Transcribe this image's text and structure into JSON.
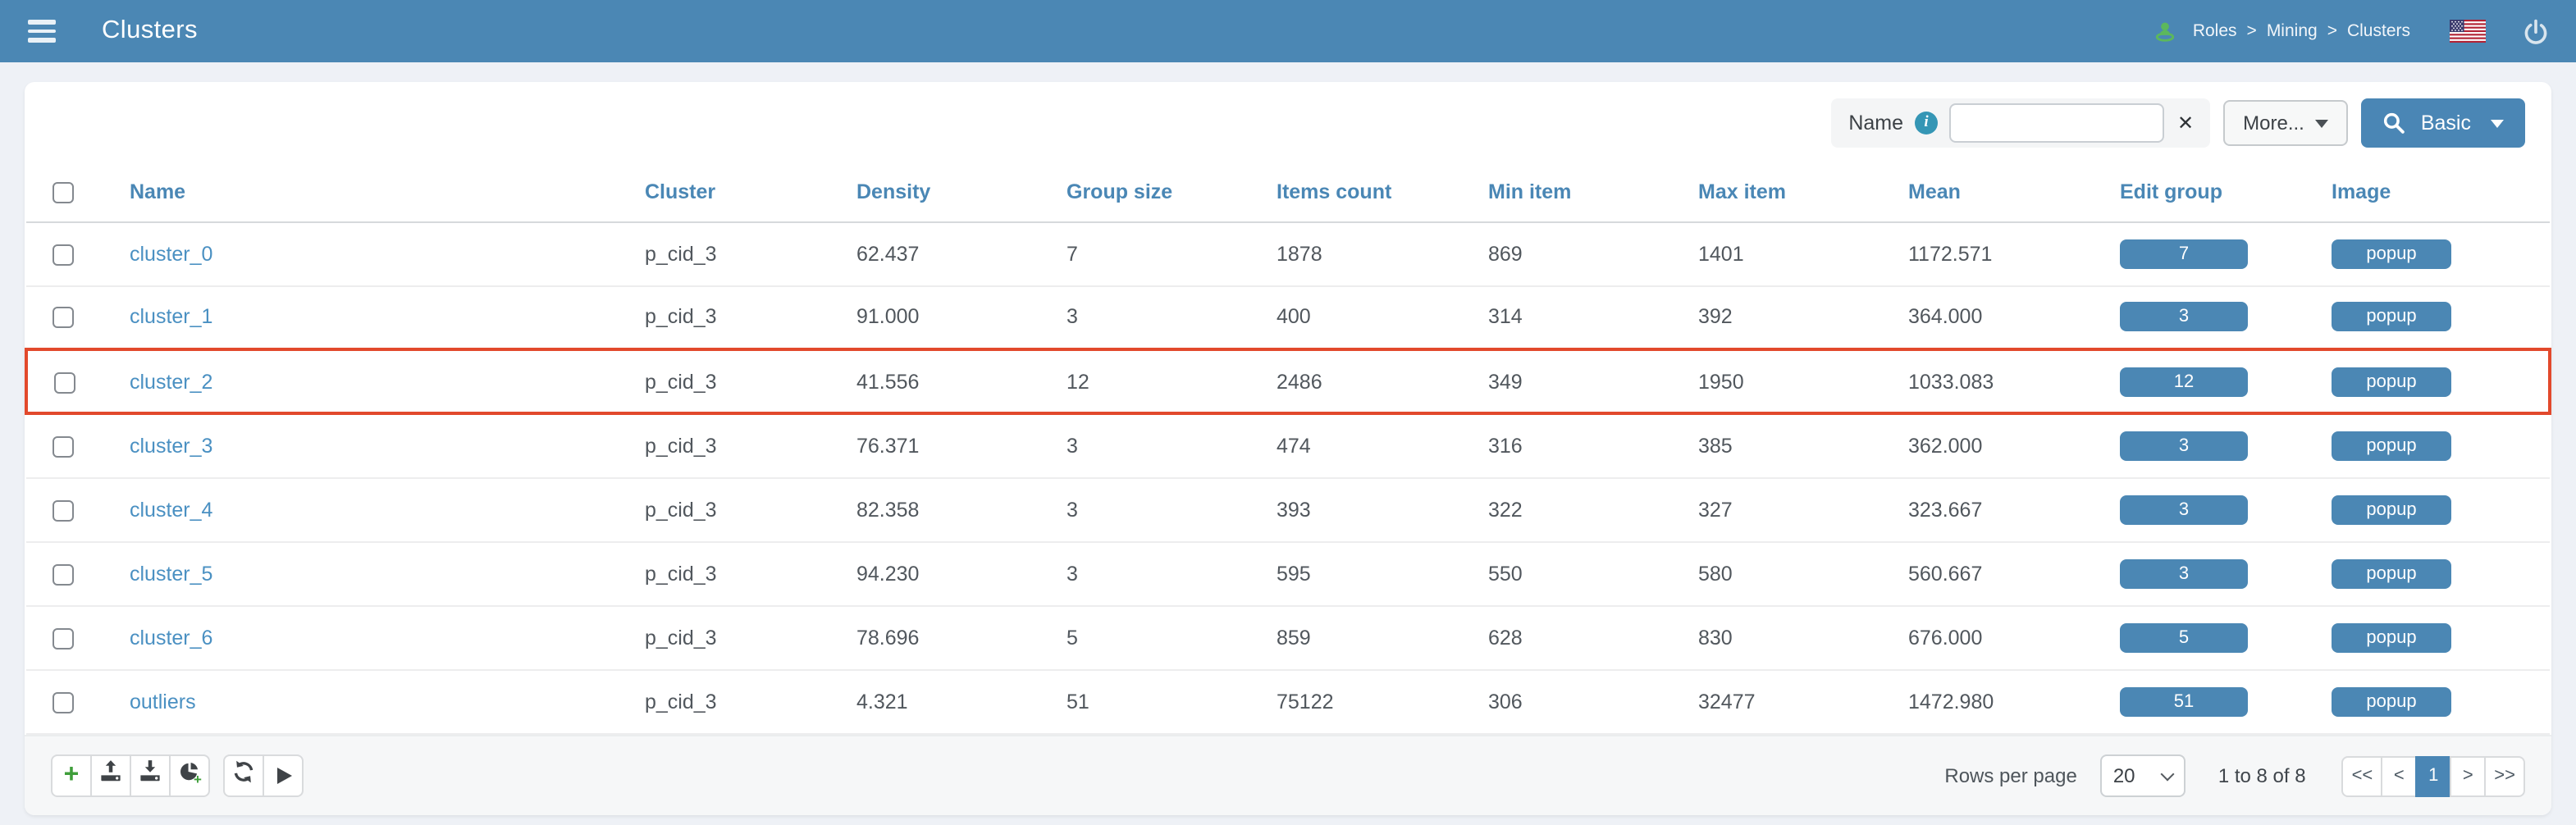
{
  "header": {
    "title": "Clusters",
    "breadcrumb": [
      "Roles",
      "Mining",
      "Clusters"
    ],
    "breadcrumb_separator": ">"
  },
  "search": {
    "field_label": "Name",
    "input_value": "",
    "more_label": "More...",
    "basic_label": "Basic"
  },
  "icons": {
    "info_glyph": "i",
    "clear_glyph": "✕",
    "add_glyph": "+"
  },
  "table": {
    "columns": [
      "Name",
      "Cluster",
      "Density",
      "Group size",
      "Items count",
      "Min item",
      "Max item",
      "Mean",
      "Edit group",
      "Image"
    ],
    "popup_label": "popup",
    "rows": [
      {
        "name": "cluster_0",
        "cluster": "p_cid_3",
        "density": "62.437",
        "group_size": "7",
        "items_count": "1878",
        "min_item": "869",
        "max_item": "1401",
        "mean": "1172.571",
        "edit_group": "7",
        "highlighted": false
      },
      {
        "name": "cluster_1",
        "cluster": "p_cid_3",
        "density": "91.000",
        "group_size": "3",
        "items_count": "400",
        "min_item": "314",
        "max_item": "392",
        "mean": "364.000",
        "edit_group": "3",
        "highlighted": false
      },
      {
        "name": "cluster_2",
        "cluster": "p_cid_3",
        "density": "41.556",
        "group_size": "12",
        "items_count": "2486",
        "min_item": "349",
        "max_item": "1950",
        "mean": "1033.083",
        "edit_group": "12",
        "highlighted": true
      },
      {
        "name": "cluster_3",
        "cluster": "p_cid_3",
        "density": "76.371",
        "group_size": "3",
        "items_count": "474",
        "min_item": "316",
        "max_item": "385",
        "mean": "362.000",
        "edit_group": "3",
        "highlighted": false
      },
      {
        "name": "cluster_4",
        "cluster": "p_cid_3",
        "density": "82.358",
        "group_size": "3",
        "items_count": "393",
        "min_item": "322",
        "max_item": "327",
        "mean": "323.667",
        "edit_group": "3",
        "highlighted": false
      },
      {
        "name": "cluster_5",
        "cluster": "p_cid_3",
        "density": "94.230",
        "group_size": "3",
        "items_count": "595",
        "min_item": "550",
        "max_item": "580",
        "mean": "560.667",
        "edit_group": "3",
        "highlighted": false
      },
      {
        "name": "cluster_6",
        "cluster": "p_cid_3",
        "density": "78.696",
        "group_size": "5",
        "items_count": "859",
        "min_item": "628",
        "max_item": "830",
        "mean": "676.000",
        "edit_group": "5",
        "highlighted": false
      },
      {
        "name": "outliers",
        "cluster": "p_cid_3",
        "density": "4.321",
        "group_size": "51",
        "items_count": "75122",
        "min_item": "306",
        "max_item": "32477",
        "mean": "1472.980",
        "edit_group": "51",
        "highlighted": false
      }
    ]
  },
  "footer": {
    "rows_per_page_label": "Rows per page",
    "rows_per_page_value": "20",
    "range_text": "1 to 8 of 8",
    "pagination": {
      "first": "<<",
      "prev": "<",
      "page": "1",
      "next": ">",
      "last": ">>"
    }
  },
  "colors": {
    "accent_blue": "#4b87b4",
    "link_blue": "#4a90c2",
    "highlight_red": "#e2492c",
    "success_green": "#3f9e3a",
    "info_teal": "#3596b5"
  }
}
